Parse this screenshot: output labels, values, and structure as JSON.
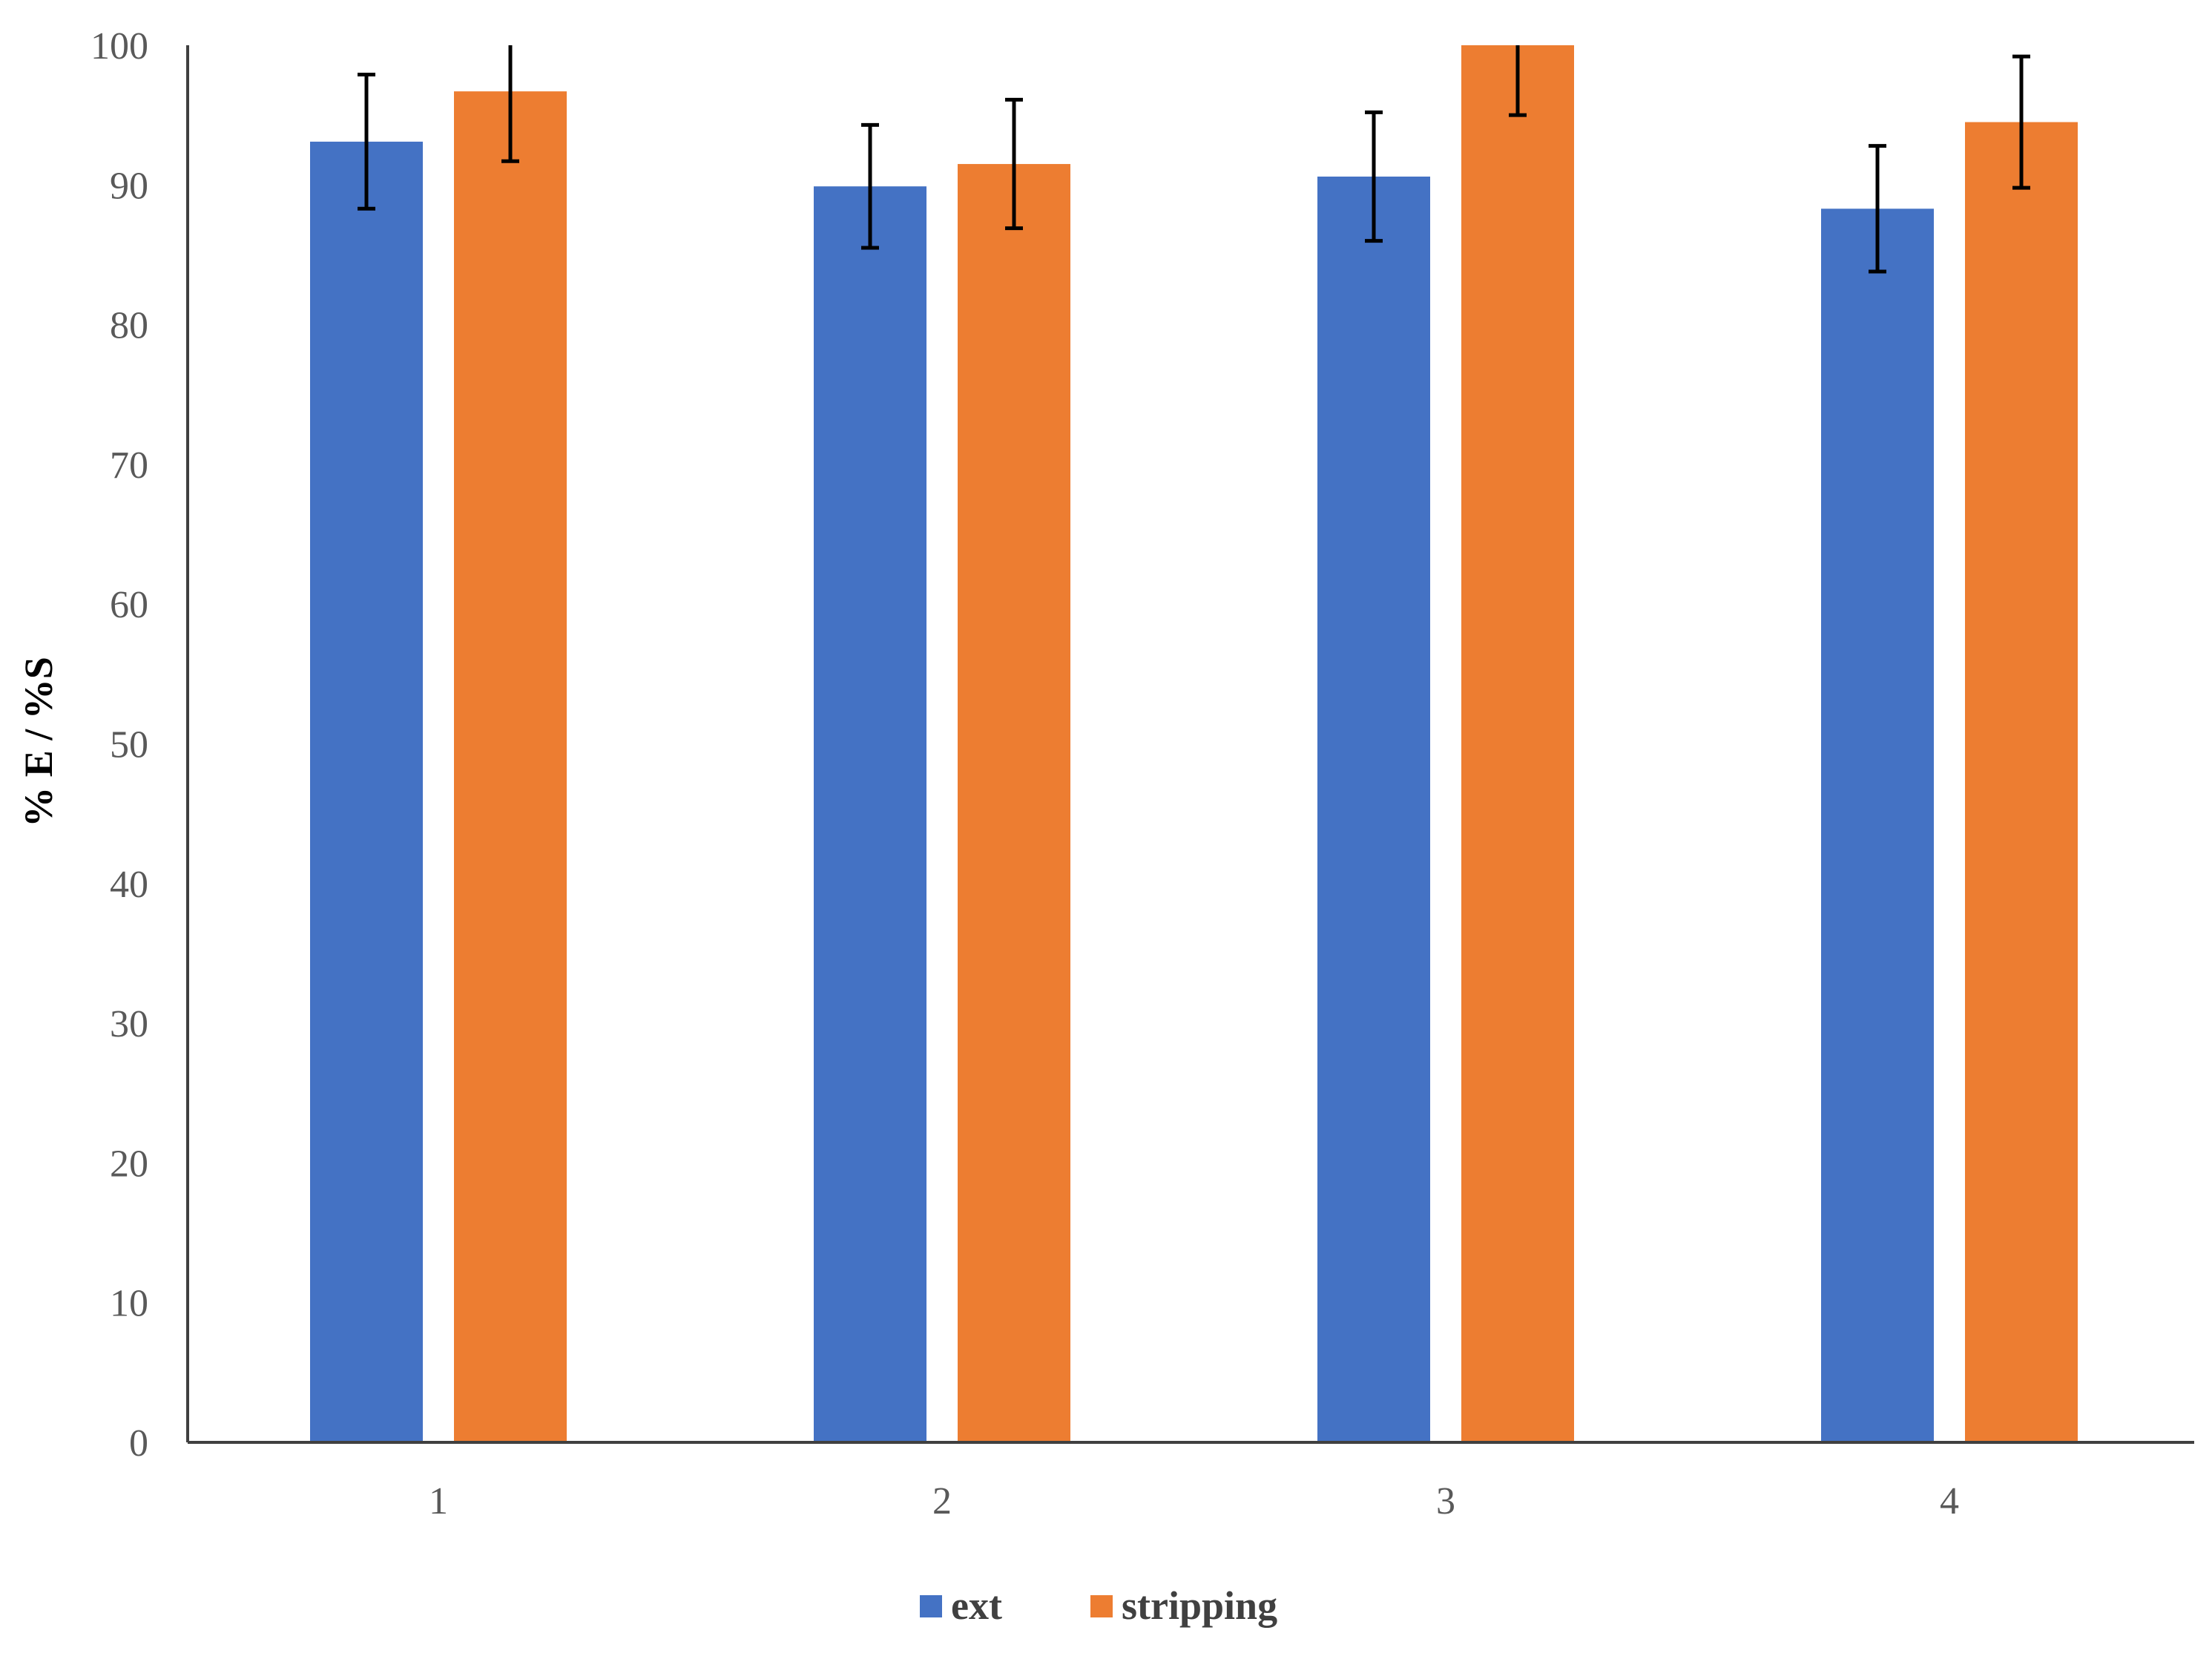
{
  "chart_data": {
    "type": "bar",
    "title": "",
    "xlabel": "",
    "ylabel": "% E / %S",
    "ylim": [
      0,
      100
    ],
    "yticks": [
      0,
      10,
      20,
      30,
      40,
      50,
      60,
      70,
      80,
      90,
      100
    ],
    "categories": [
      "1",
      "2",
      "3",
      "4"
    ],
    "grid": false,
    "legend_position": "bottom",
    "series": [
      {
        "name": "ext",
        "color": "#4472C4",
        "values": [
          93.1,
          89.9,
          90.6,
          88.3
        ],
        "errors": [
          4.8,
          4.4,
          4.6,
          4.5
        ]
      },
      {
        "name": "stripping",
        "color": "#ED7D31",
        "values": [
          96.7,
          91.5,
          100,
          94.5
        ],
        "errors": [
          5.0,
          4.6,
          5.0,
          4.7
        ]
      }
    ]
  }
}
